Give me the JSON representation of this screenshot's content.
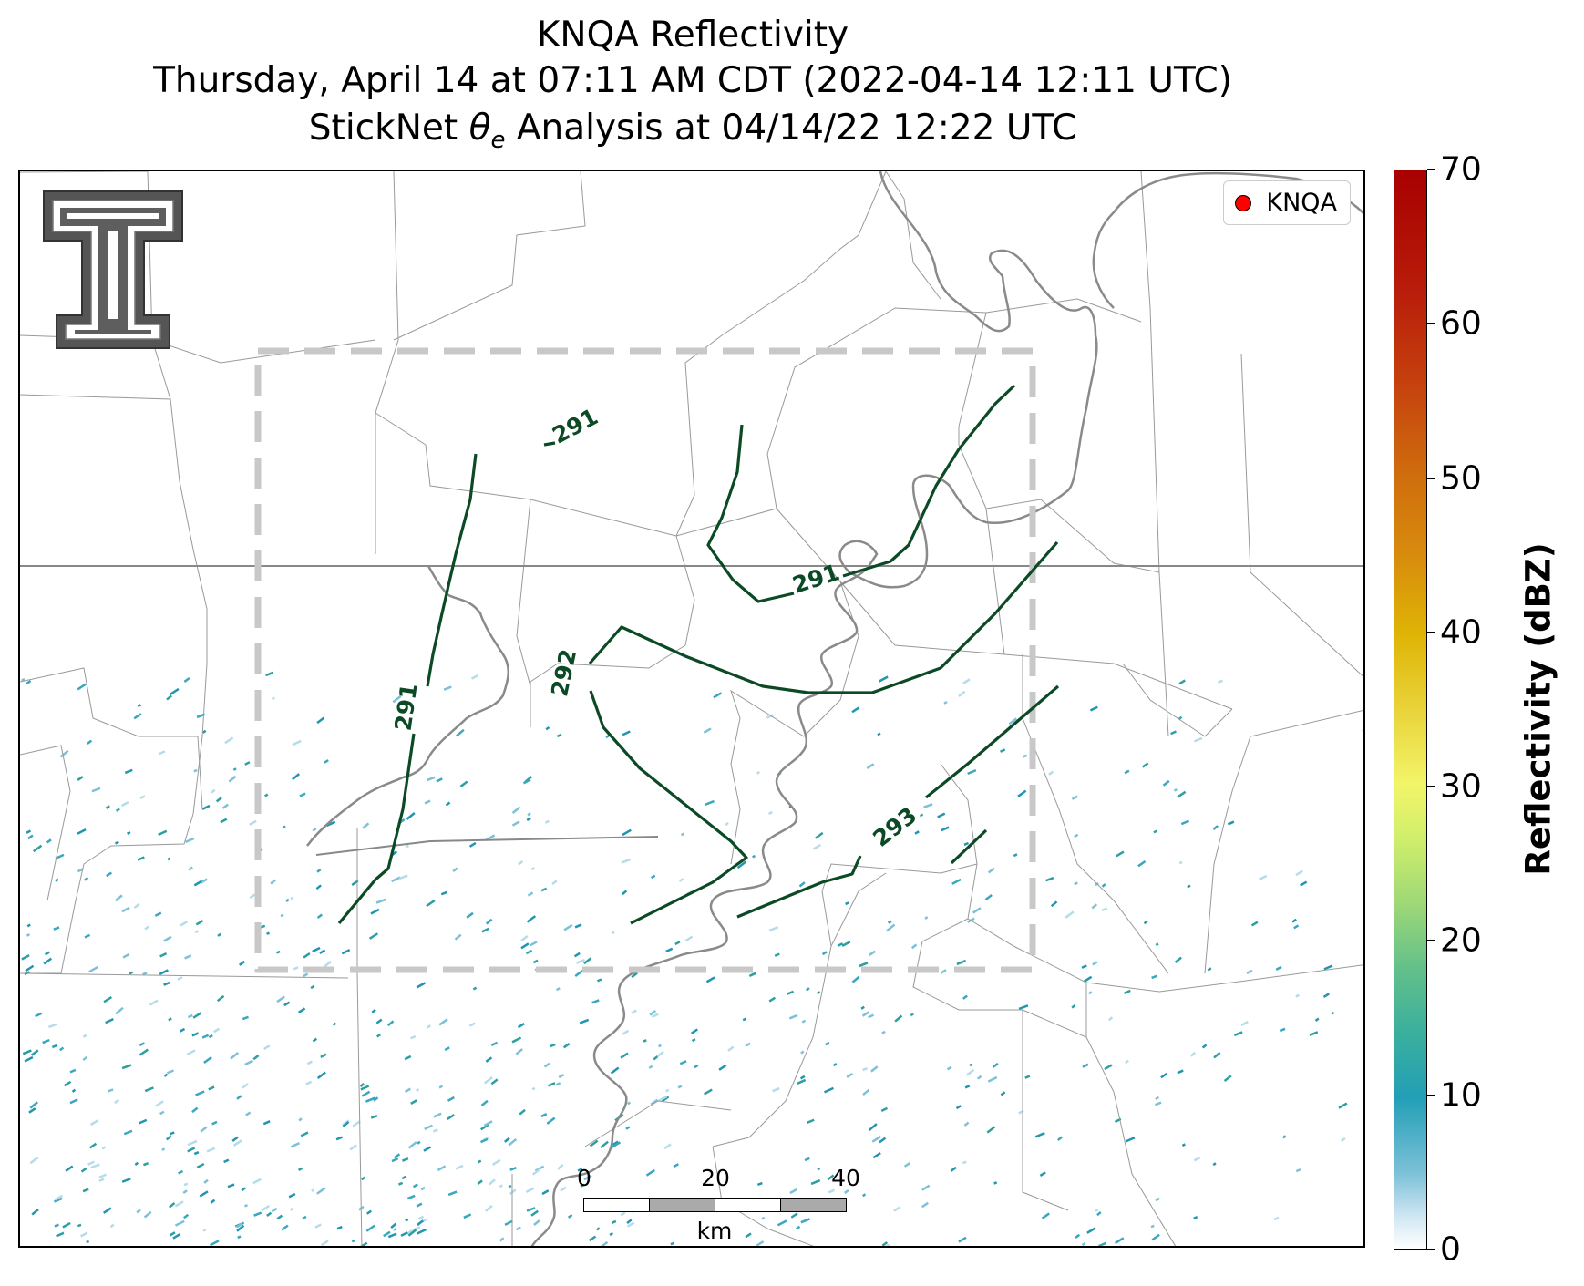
{
  "title": {
    "line1": "KNQA Reflectivity",
    "line2": "Thursday, April 14 at 07:11 AM CDT (2022-04-14 12:11 UTC)",
    "line3_prefix": "StickNet ",
    "line3_symbol": "θ",
    "line3_subscript": "e",
    "line3_suffix": " Analysis at 04/14/22 12:22 UTC"
  },
  "legend": {
    "label": "KNQA",
    "marker_color": "#ff0000"
  },
  "contour_labels": [
    "291",
    "291",
    "291",
    "292",
    "293"
  ],
  "scalebar": {
    "ticks": [
      "0",
      "20",
      "40"
    ],
    "unit": "km"
  },
  "colorbar": {
    "title": "Reflectivity (dBZ)",
    "ticks": [
      "0",
      "10",
      "20",
      "30",
      "40",
      "50",
      "60",
      "70"
    ],
    "range": [
      0,
      70
    ]
  },
  "colors": {
    "contour": "#0b4a25",
    "boundary_state": "#808080",
    "boundary_county": "#999999",
    "river": "#8a8a8a",
    "domain_box": "#c8c8c8"
  },
  "icons": [
    "texas-tech-double-t-logo"
  ]
}
